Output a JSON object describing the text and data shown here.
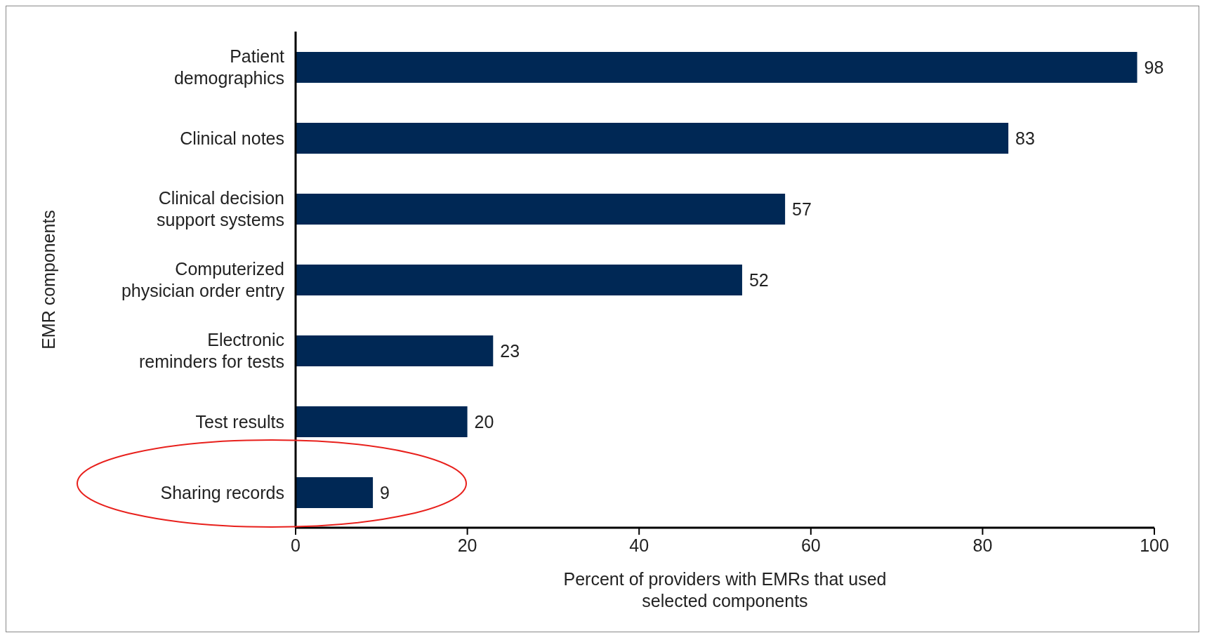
{
  "chart_data": {
    "type": "bar",
    "orientation": "horizontal",
    "xlabel": "Percent of providers with EMRs that used selected components",
    "ylabel": "EMR components",
    "categories": [
      "Patient demographics",
      "Clinical notes",
      "Clinical decision support systems",
      "Computerized physician order entry",
      "Electronic reminders for tests",
      "Test results",
      "Sharing records"
    ],
    "values": [
      98,
      83,
      57,
      52,
      23,
      20,
      9
    ],
    "color": "#002855",
    "xlim": [
      0,
      100
    ],
    "xticks": [
      0,
      20,
      40,
      60,
      80,
      100
    ],
    "data_labels": true
  }
}
